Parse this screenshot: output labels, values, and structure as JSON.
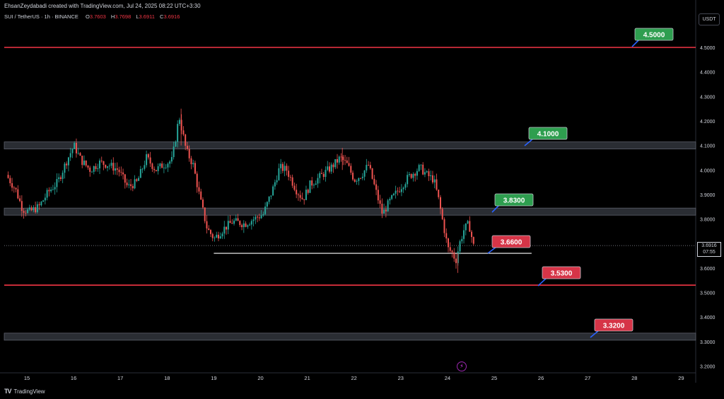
{
  "header": "EhsanZeydabadi created with TradingView.com, Jul 24, 2025 08:22 UTC+3:30",
  "symbol": "SUI / TetherUS · 1h · BINANCE",
  "ohlc": {
    "o_label": "O",
    "o": "3.7603",
    "h_label": "H",
    "h": "3.7698",
    "l_label": "L",
    "l": "3.6911",
    "c_label": "C",
    "c": "3.6916"
  },
  "currency": "USDT",
  "current_price": "3.6916",
  "countdown": "07:55",
  "footer_logo": "TV",
  "footer_brand": "TradingView",
  "flash_icon": "⚡",
  "colors": {
    "up": "#26a69a",
    "down": "#ef5350",
    "line": "#f23645",
    "green_label": "#2e9e4f",
    "red_label": "#d63447",
    "zone": "#434651"
  },
  "chart_data": {
    "type": "candlestick",
    "x_ticks": [
      "15",
      "16",
      "17",
      "18",
      "19",
      "20",
      "21",
      "22",
      "23",
      "24",
      "25",
      "26",
      "27",
      "28",
      "29"
    ],
    "y_ticks": [
      "4.5000",
      "4.4000",
      "4.3000",
      "4.2000",
      "4.1000",
      "4.0000",
      "3.9000",
      "3.8000",
      "3.7000",
      "3.6000",
      "3.5000",
      "3.4000",
      "3.3000",
      "3.2000"
    ],
    "ylim": [
      3.17,
      4.62
    ],
    "levels": [
      {
        "value": 4.5,
        "label": "4.5000",
        "kind": "line",
        "tag": "green"
      },
      {
        "value": 4.1,
        "label": "4.1000",
        "kind": "zone",
        "tag": "green"
      },
      {
        "value": 3.83,
        "label": "3.8300",
        "kind": "zone",
        "tag": "green"
      },
      {
        "value": 3.66,
        "label": "3.6600",
        "kind": "support",
        "tag": "red"
      },
      {
        "value": 3.53,
        "label": "3.5300",
        "kind": "line",
        "tag": "red"
      },
      {
        "value": 3.32,
        "label": "3.3200",
        "kind": "zone",
        "tag": "red"
      }
    ],
    "price_path": [
      [
        14.6,
        3.98
      ],
      [
        14.8,
        3.92
      ],
      [
        14.95,
        3.84
      ],
      [
        15.1,
        3.83
      ],
      [
        15.3,
        3.85
      ],
      [
        15.5,
        3.91
      ],
      [
        15.7,
        3.95
      ],
      [
        15.9,
        4.04
      ],
      [
        16.05,
        4.1
      ],
      [
        16.2,
        4.04
      ],
      [
        16.4,
        4.0
      ],
      [
        16.6,
        4.03
      ],
      [
        16.8,
        4.02
      ],
      [
        17.0,
        4.0
      ],
      [
        17.2,
        3.93
      ],
      [
        17.4,
        3.95
      ],
      [
        17.6,
        4.05
      ],
      [
        17.8,
        4.0
      ],
      [
        17.95,
        4.02
      ],
      [
        18.15,
        4.04
      ],
      [
        18.3,
        4.22
      ],
      [
        18.45,
        4.08
      ],
      [
        18.6,
        4.02
      ],
      [
        18.75,
        3.88
      ],
      [
        18.9,
        3.76
      ],
      [
        19.05,
        3.72
      ],
      [
        19.25,
        3.76
      ],
      [
        19.45,
        3.79
      ],
      [
        19.7,
        3.78
      ],
      [
        19.9,
        3.8
      ],
      [
        20.1,
        3.82
      ],
      [
        20.3,
        3.92
      ],
      [
        20.45,
        4.01
      ],
      [
        20.6,
        4.0
      ],
      [
        20.8,
        3.92
      ],
      [
        20.95,
        3.88
      ],
      [
        21.1,
        3.94
      ],
      [
        21.3,
        3.97
      ],
      [
        21.55,
        4.01
      ],
      [
        21.75,
        4.05
      ],
      [
        21.9,
        4.02
      ],
      [
        22.05,
        3.96
      ],
      [
        22.2,
        3.98
      ],
      [
        22.35,
        4.02
      ],
      [
        22.5,
        3.92
      ],
      [
        22.65,
        3.82
      ],
      [
        22.8,
        3.87
      ],
      [
        23.0,
        3.92
      ],
      [
        23.2,
        3.97
      ],
      [
        23.45,
        4.01
      ],
      [
        23.6,
        3.98
      ],
      [
        23.75,
        3.96
      ],
      [
        23.85,
        3.88
      ],
      [
        23.95,
        3.78
      ],
      [
        24.05,
        3.68
      ],
      [
        24.15,
        3.66
      ],
      [
        24.22,
        3.63
      ],
      [
        24.3,
        3.7
      ],
      [
        24.4,
        3.76
      ],
      [
        24.5,
        3.78
      ],
      [
        24.6,
        3.69
      ]
    ]
  }
}
